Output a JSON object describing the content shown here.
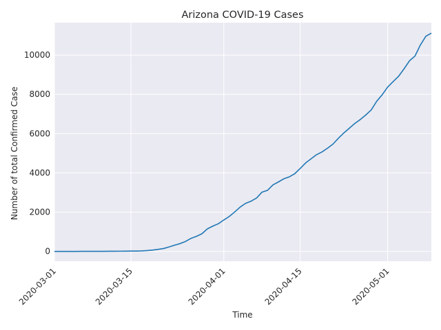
{
  "chart_data": {
    "type": "line",
    "title": "Arizona COVID-19 Cases",
    "xlabel": "Time",
    "ylabel": "Number of total Confirmed Case",
    "x_type": "date",
    "xlim": [
      "2020-03-01",
      "2020-05-09"
    ],
    "ylim": [
      -500,
      11650
    ],
    "x_ticks": [
      "2020-03-01",
      "2020-03-15",
      "2020-04-01",
      "2020-04-15",
      "2020-05-01"
    ],
    "y_ticks": [
      0,
      2000,
      4000,
      6000,
      8000,
      10000
    ],
    "grid": true,
    "line_color": "#1f77b4",
    "background_color": "#eaeaf2",
    "series": [
      {
        "x": [
          "2020-03-01",
          "2020-03-02",
          "2020-03-03",
          "2020-03-04",
          "2020-03-05",
          "2020-03-06",
          "2020-03-07",
          "2020-03-08",
          "2020-03-09",
          "2020-03-10",
          "2020-03-11",
          "2020-03-12",
          "2020-03-13",
          "2020-03-14",
          "2020-03-15",
          "2020-03-16",
          "2020-03-17",
          "2020-03-18",
          "2020-03-19",
          "2020-03-20",
          "2020-03-21",
          "2020-03-22",
          "2020-03-23",
          "2020-03-24",
          "2020-03-25",
          "2020-03-26",
          "2020-03-27",
          "2020-03-28",
          "2020-03-29",
          "2020-03-30",
          "2020-03-31",
          "2020-04-01",
          "2020-04-02",
          "2020-04-03",
          "2020-04-04",
          "2020-04-05",
          "2020-04-06",
          "2020-04-07",
          "2020-04-08",
          "2020-04-09",
          "2020-04-10",
          "2020-04-11",
          "2020-04-12",
          "2020-04-13",
          "2020-04-14",
          "2020-04-15",
          "2020-04-16",
          "2020-04-17",
          "2020-04-18",
          "2020-04-19",
          "2020-04-20",
          "2020-04-21",
          "2020-04-22",
          "2020-04-23",
          "2020-04-24",
          "2020-04-25",
          "2020-04-26",
          "2020-04-27",
          "2020-04-28",
          "2020-04-29",
          "2020-04-30",
          "2020-05-01",
          "2020-05-02",
          "2020-05-03",
          "2020-05-04",
          "2020-05-05",
          "2020-05-06",
          "2020-05-07",
          "2020-05-08",
          "2020-05-09"
        ],
        "y": [
          1,
          1,
          1,
          2,
          2,
          5,
          5,
          5,
          6,
          6,
          9,
          9,
          12,
          13,
          18,
          20,
          27,
          45,
          70,
          105,
          150,
          230,
          320,
          400,
          508,
          665,
          770,
          900,
          1150,
          1290,
          1410,
          1600,
          1780,
          2010,
          2260,
          2450,
          2560,
          2720,
          3020,
          3110,
          3390,
          3540,
          3700,
          3800,
          3960,
          4230,
          4510,
          4720,
          4930,
          5070,
          5260,
          5470,
          5770,
          6040,
          6280,
          6520,
          6720,
          6950,
          7210,
          7650,
          7980,
          8370,
          8650,
          8920,
          9300,
          9710,
          9950,
          10520,
          10960,
          11120
        ]
      }
    ]
  }
}
